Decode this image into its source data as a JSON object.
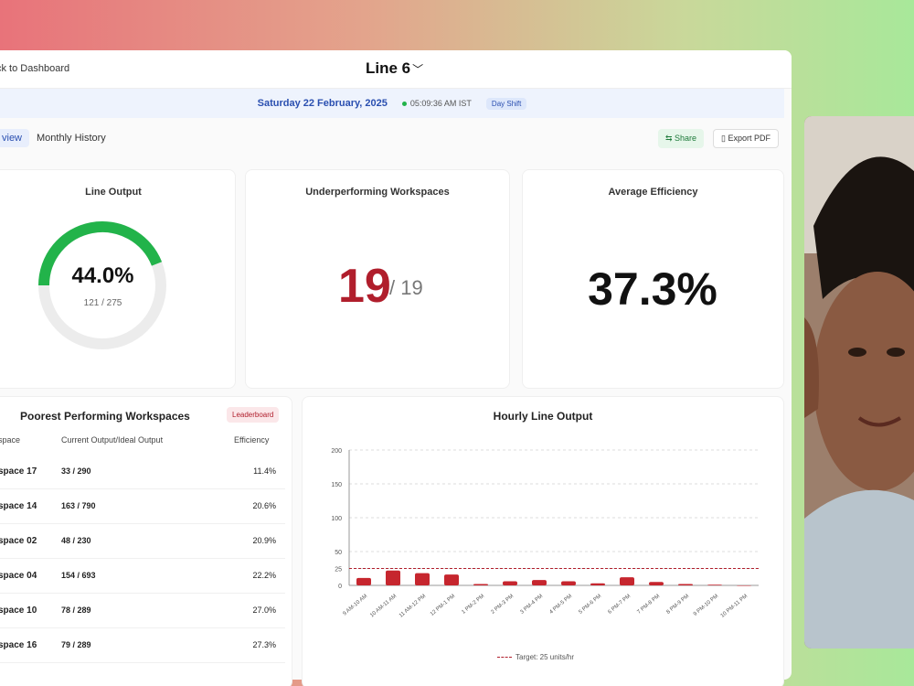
{
  "header": {
    "back_label": "ck to Dashboard",
    "line_title": "Line 6",
    "chevron_icon": "chevron-down-icon"
  },
  "datebar": {
    "date": "Saturday 22 February, 2025",
    "time": "05:09:36 AM IST",
    "shift": "Day Shift"
  },
  "tabs": [
    {
      "label": "view"
    },
    {
      "label": "Monthly History"
    }
  ],
  "actions": {
    "share": "Share",
    "export": "Export PDF"
  },
  "line_output": {
    "title": "Line Output",
    "value": "44.0%",
    "fraction": 0.44,
    "sub": "121 / 275"
  },
  "underperforming": {
    "title": "Underperforming Workspaces",
    "count": "19",
    "total": "/ 19"
  },
  "avg_efficiency": {
    "title": "Average Efficiency",
    "value": "37.3%"
  },
  "poorest": {
    "title": "Poorest Performing Workspaces",
    "leaderboard": "Leaderboard",
    "headers": {
      "ws": "space",
      "output": "Current Output/Ideal Output",
      "eff": "Efficiency"
    },
    "rows": [
      {
        "ws": "space 17",
        "out": "33 / 290",
        "eff": "11.4%"
      },
      {
        "ws": "space 14",
        "out": "163 / 790",
        "eff": "20.6%"
      },
      {
        "ws": "space 02",
        "out": "48 / 230",
        "eff": "20.9%"
      },
      {
        "ws": "space 04",
        "out": "154 / 693",
        "eff": "22.2%"
      },
      {
        "ws": "space 10",
        "out": "78 / 289",
        "eff": "27.0%"
      },
      {
        "ws": "space 16",
        "out": "79 / 289",
        "eff": "27.3%"
      }
    ]
  },
  "hourly": {
    "title": "Hourly Line Output",
    "legend": "Target: 25 units/hr"
  },
  "chart_data": {
    "type": "bar",
    "title": "Hourly Line Output",
    "categories": [
      "9 AM-10 AM",
      "10 AM-11 AM",
      "11 AM-12 PM",
      "12 PM-1 PM",
      "1 PM-2 PM",
      "2 PM-3 PM",
      "3 PM-4 PM",
      "4 PM-5 PM",
      "5 PM-6 PM",
      "6 PM-7 PM",
      "7 PM-8 PM",
      "8 PM-9 PM",
      "9 PM-10 PM",
      "10 PM-11 PM"
    ],
    "values": [
      11,
      22,
      18,
      16,
      2,
      6,
      8,
      6,
      3,
      12,
      5,
      2,
      1,
      0
    ],
    "yticks": [
      0,
      25,
      50,
      100,
      150,
      200
    ],
    "ylim": [
      0,
      200
    ],
    "target": 25,
    "colors": {
      "bar": "#c6262e",
      "target": "#b01e2c"
    }
  }
}
